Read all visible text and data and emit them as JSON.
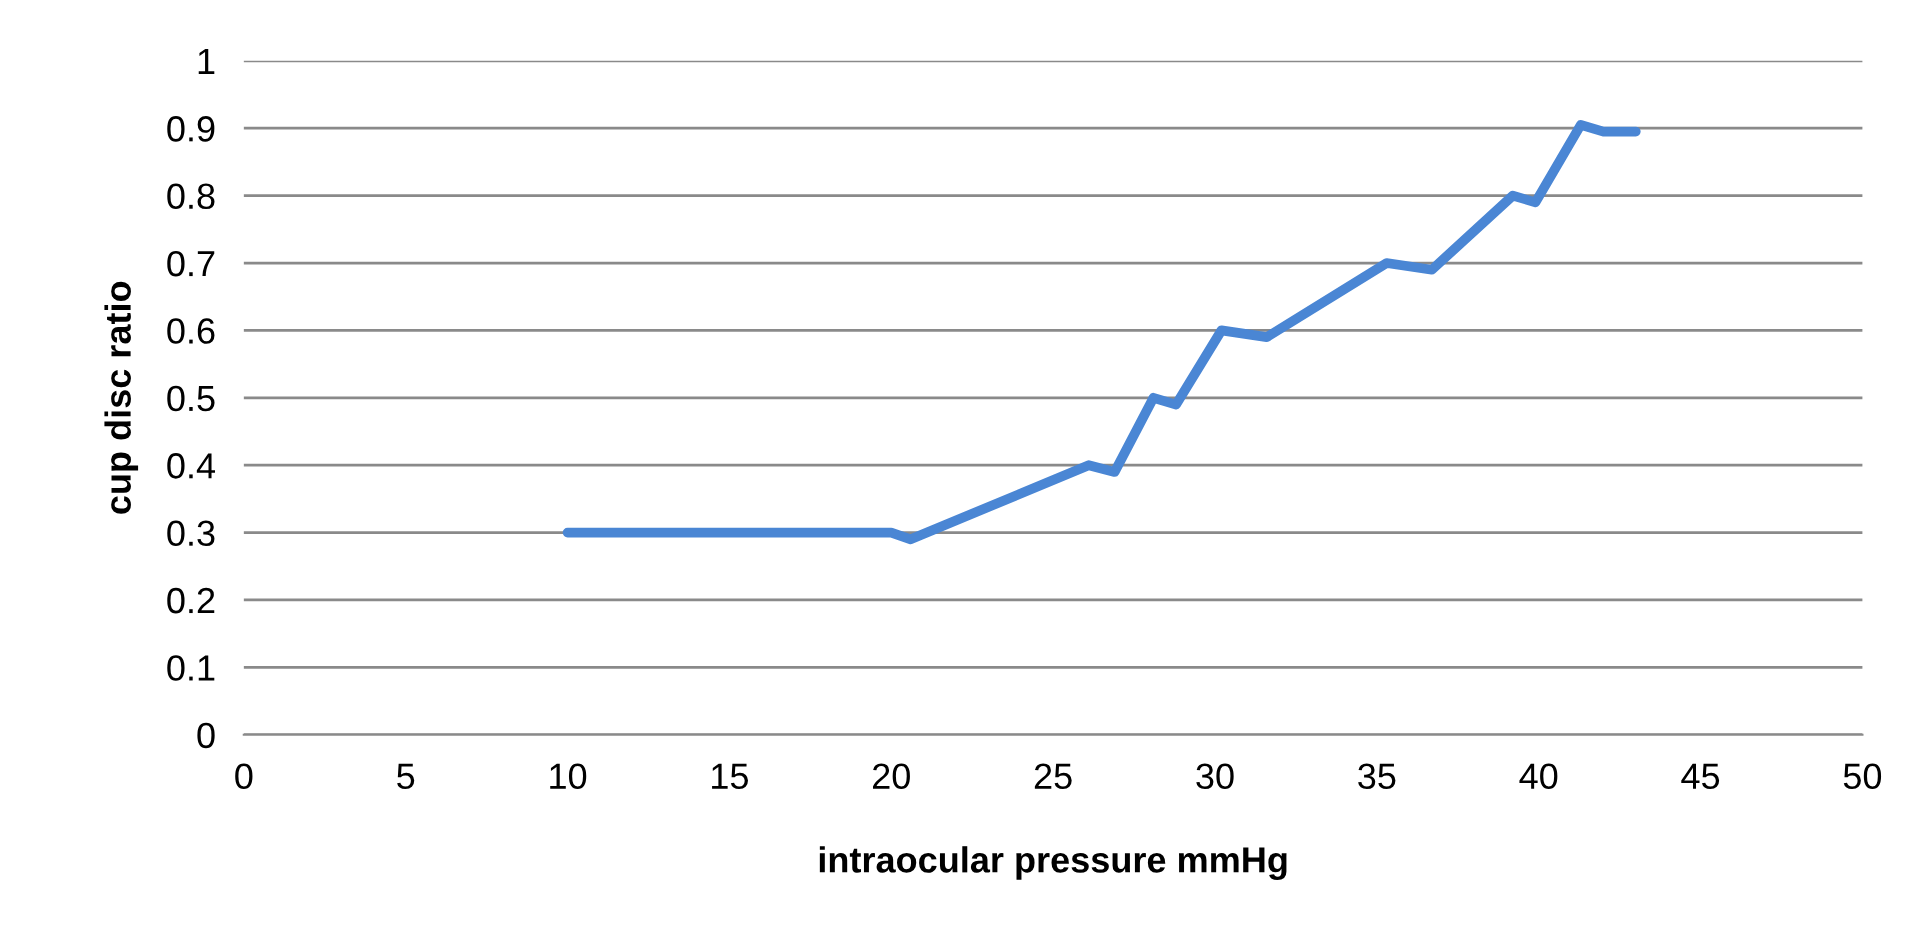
{
  "chart_data": {
    "type": "line",
    "xlabel": "intraocular pressure mmHg",
    "ylabel": "cup disc ratio",
    "xlim": [
      0,
      50
    ],
    "xticks": [
      0,
      5,
      10,
      15,
      20,
      25,
      30,
      35,
      40,
      45,
      50
    ],
    "ylim": [
      0,
      1
    ],
    "yticks": [
      0,
      0.1,
      0.2,
      0.3,
      0.4,
      0.5,
      0.6,
      0.7,
      0.8,
      0.9,
      1
    ],
    "grid": "y",
    "line_style": "solid",
    "marker": "none",
    "series": [
      {
        "color": "#4a86d4",
        "x": [
          10,
          20,
          20.6,
          26.1,
          26.9,
          28.1,
          28.8,
          30.2,
          31.6,
          35.3,
          36.7,
          39.2,
          39.9,
          41.3,
          42,
          43
        ],
        "values": [
          0.3,
          0.3,
          0.29,
          0.4,
          0.39,
          0.5,
          0.49,
          0.6,
          0.59,
          0.7,
          0.69,
          0.8,
          0.79,
          0.905,
          0.895,
          0.895
        ]
      }
    ]
  }
}
